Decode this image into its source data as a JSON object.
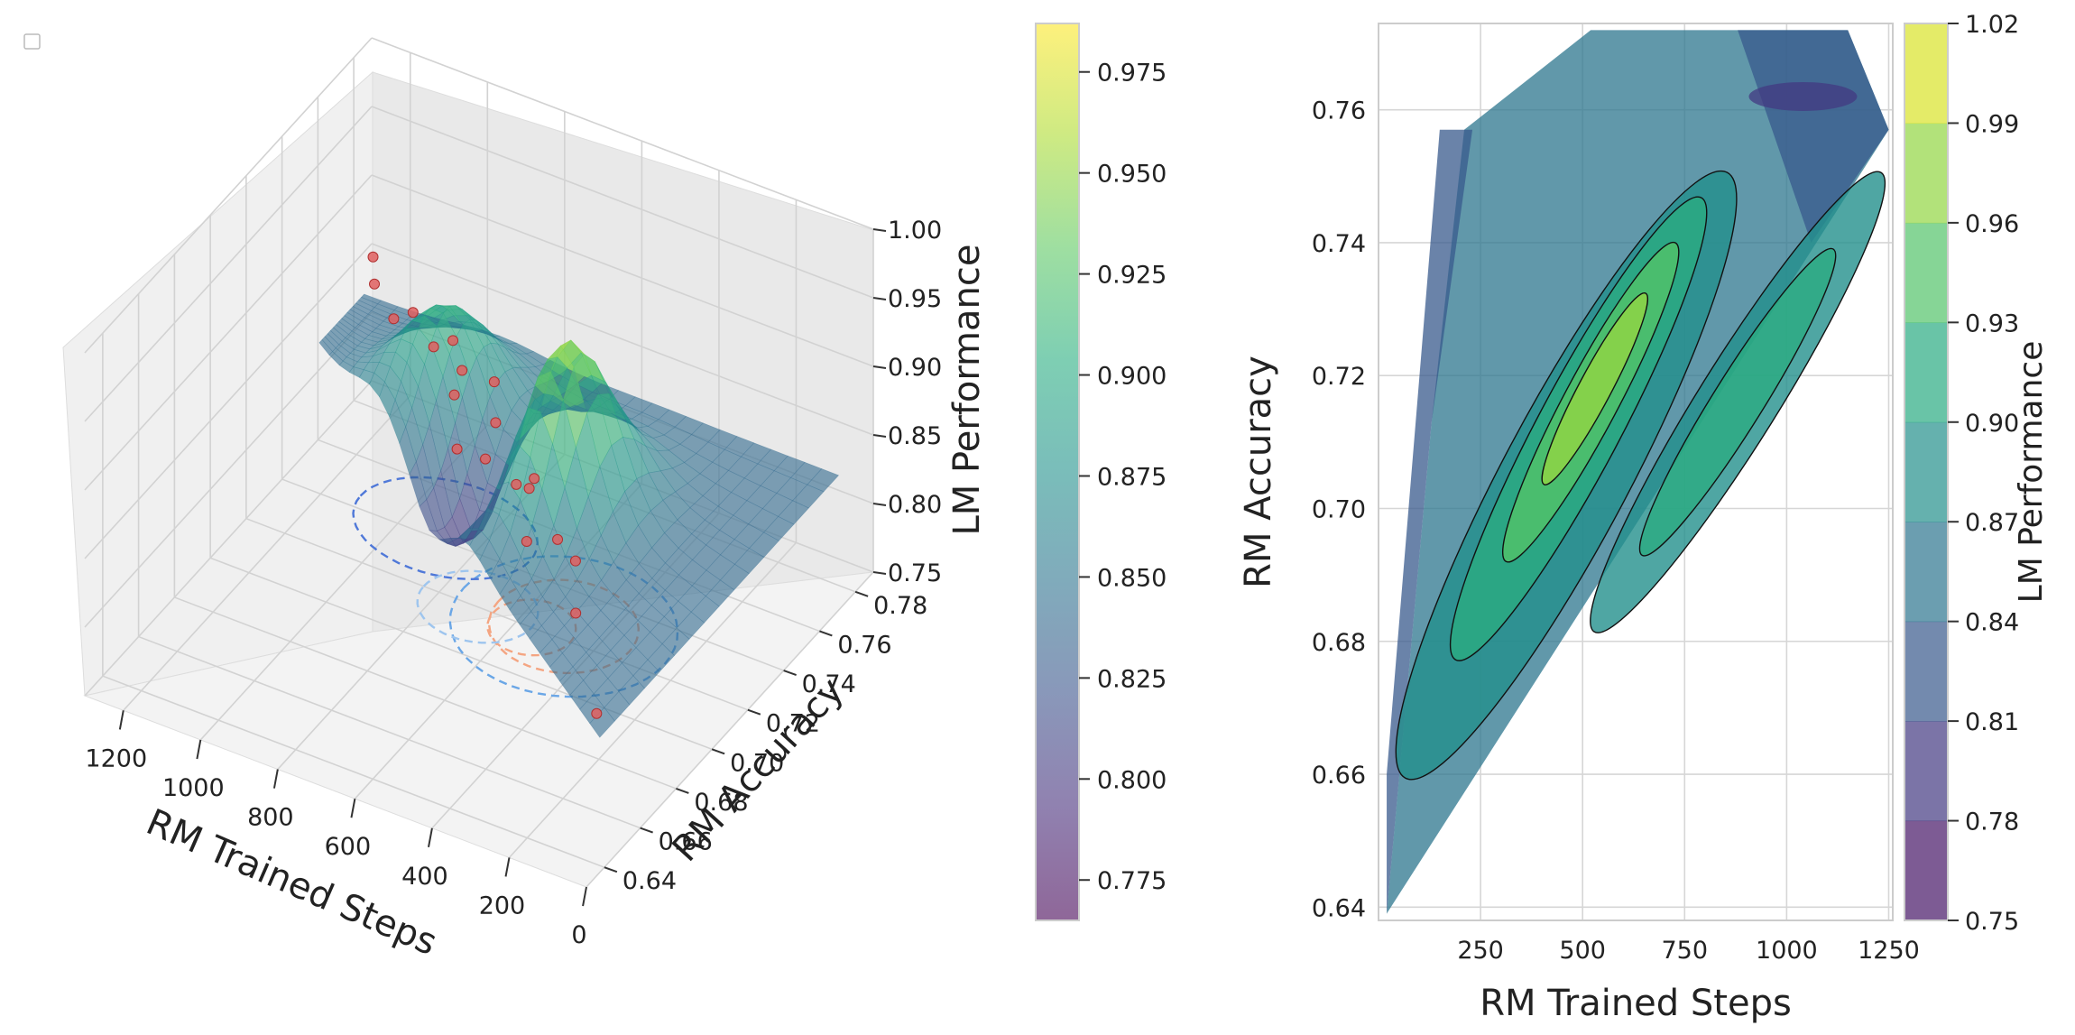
{
  "figure": {
    "legend_box": true
  },
  "chart_data": [
    {
      "type": "surface3d",
      "xlabel": "RM Trained Steps",
      "ylabel": "RM Accuracy",
      "zlabel": "LM Performance",
      "x_ticks": [
        "1200",
        "1000",
        "800",
        "600",
        "400",
        "200",
        "0"
      ],
      "y_ticks": [
        "0.64",
        "0.66",
        "0.68",
        "0.70",
        "0.72",
        "0.74",
        "0.76",
        "0.78"
      ],
      "z_ticks": [
        "0.75",
        "0.80",
        "0.85",
        "0.90",
        "0.95",
        "1.00"
      ],
      "xlim": [
        0,
        1300
      ],
      "ylim": [
        0.63,
        0.79
      ],
      "zlim": [
        0.75,
        1.0
      ],
      "colormap": "viridis",
      "surface_alpha": 0.6,
      "grid": true,
      "colorbar": {
        "range": [
          0.765,
          0.987
        ],
        "ticks": [
          "0.775",
          "0.800",
          "0.825",
          "0.850",
          "0.875",
          "0.900",
          "0.925",
          "0.950",
          "0.975"
        ]
      },
      "scatter_points": [
        {
          "x": 20,
          "y": 0.64,
          "z": 0.86
        },
        {
          "x": 260,
          "y": 0.68,
          "z": 0.85
        },
        {
          "x": 400,
          "y": 0.7,
          "z": 0.86
        },
        {
          "x": 480,
          "y": 0.7,
          "z": 0.85
        },
        {
          "x": 520,
          "y": 0.71,
          "z": 0.87
        },
        {
          "x": 600,
          "y": 0.72,
          "z": 0.85
        },
        {
          "x": 680,
          "y": 0.72,
          "z": 0.86
        },
        {
          "x": 700,
          "y": 0.73,
          "z": 0.87
        },
        {
          "x": 750,
          "y": 0.74,
          "z": 0.88
        },
        {
          "x": 800,
          "y": 0.73,
          "z": 0.84
        },
        {
          "x": 880,
          "y": 0.75,
          "z": 0.86
        },
        {
          "x": 950,
          "y": 0.76,
          "z": 0.86
        },
        {
          "x": 1000,
          "y": 0.76,
          "z": 0.85
        },
        {
          "x": 1100,
          "y": 0.77,
          "z": 0.85
        },
        {
          "x": 1200,
          "y": 0.77,
          "z": 0.86
        },
        {
          "x": 1250,
          "y": 0.78,
          "z": 0.86
        },
        {
          "x": 600,
          "y": 0.73,
          "z": 0.84
        },
        {
          "x": 400,
          "y": 0.71,
          "z": 0.83
        },
        {
          "x": 900,
          "y": 0.75,
          "z": 0.84
        },
        {
          "x": 1150,
          "y": 0.77,
          "z": 0.84
        }
      ]
    },
    {
      "type": "contour",
      "xlabel": "RM Trained Steps",
      "ylabel": "RM Accuracy",
      "zlabel": "LM Performance",
      "x_ticks": [
        "250",
        "500",
        "750",
        "1000",
        "1250"
      ],
      "y_ticks": [
        "0.64",
        "0.66",
        "0.68",
        "0.70",
        "0.72",
        "0.74",
        "0.76"
      ],
      "xlim": [
        0,
        1260
      ],
      "ylim": [
        0.638,
        0.773
      ],
      "grid": true,
      "colormap": "viridis",
      "levels": [
        0.75,
        0.78,
        0.81,
        0.84,
        0.87,
        0.9,
        0.93,
        0.96,
        0.99,
        1.02
      ],
      "colorbar": {
        "ticks": [
          "0.75",
          "0.78",
          "0.81",
          "0.84",
          "0.87",
          "0.90",
          "0.93",
          "0.96",
          "0.99",
          "1.02"
        ]
      }
    }
  ]
}
